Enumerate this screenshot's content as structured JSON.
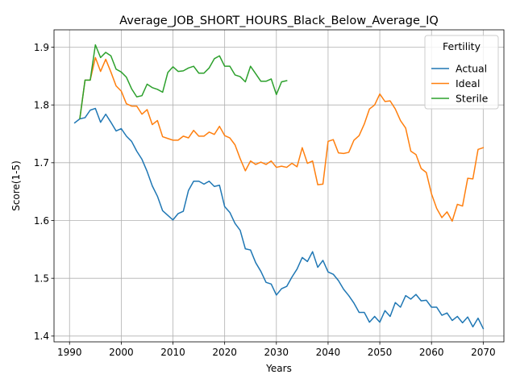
{
  "chart_data": {
    "type": "line",
    "title": "Average_JOB_SHORT_HOURS_Black_Below_Average_IQ",
    "xlabel": "Years",
    "ylabel": "Score(1-5)",
    "xlim": [
      1987,
      2074
    ],
    "ylim": [
      1.39,
      1.93
    ],
    "xticks": [
      1990,
      2000,
      2010,
      2020,
      2030,
      2040,
      2050,
      2060,
      2070
    ],
    "yticks": [
      1.4,
      1.5,
      1.6,
      1.7,
      1.8,
      1.9
    ],
    "grid": true,
    "legend": {
      "title": "Fertility",
      "placement": "top-right"
    },
    "series": [
      {
        "name": "Actual",
        "color": "#1f77b4",
        "x": [
          1991,
          1992,
          1993,
          1994,
          1995,
          1996,
          1997,
          1998,
          1999,
          2000,
          2001,
          2002,
          2003,
          2004,
          2005,
          2006,
          2007,
          2008,
          2009,
          2010,
          2011,
          2012,
          2013,
          2014,
          2015,
          2016,
          2017,
          2018,
          2019,
          2020,
          2021,
          2022,
          2023,
          2024,
          2025,
          2026,
          2027,
          2028,
          2029,
          2030,
          2031,
          2032,
          2033,
          2034,
          2035,
          2036,
          2037,
          2038,
          2039,
          2040,
          2041,
          2042,
          2043,
          2044,
          2045,
          2046,
          2047,
          2048,
          2049,
          2050,
          2051,
          2052,
          2053,
          2054,
          2055,
          2056,
          2057,
          2058,
          2059,
          2060,
          2061,
          2062,
          2063,
          2064,
          2065,
          2066,
          2067,
          2068,
          2069,
          2070
        ],
        "values": [
          1.769,
          1.776,
          1.778,
          1.791,
          1.794,
          1.77,
          1.784,
          1.77,
          1.755,
          1.759,
          1.746,
          1.737,
          1.72,
          1.706,
          1.685,
          1.66,
          1.642,
          1.617,
          1.609,
          1.601,
          1.612,
          1.616,
          1.652,
          1.668,
          1.668,
          1.663,
          1.668,
          1.659,
          1.661,
          1.624,
          1.614,
          1.595,
          1.583,
          1.551,
          1.549,
          1.527,
          1.512,
          1.493,
          1.49,
          1.471,
          1.482,
          1.486,
          1.502,
          1.516,
          1.536,
          1.529,
          1.546,
          1.519,
          1.531,
          1.511,
          1.507,
          1.496,
          1.481,
          1.47,
          1.457,
          1.441,
          1.441,
          1.424,
          1.434,
          1.424,
          1.444,
          1.434,
          1.458,
          1.45,
          1.47,
          1.464,
          1.472,
          1.461,
          1.462,
          1.45,
          1.45,
          1.436,
          1.44,
          1.427,
          1.434,
          1.423,
          1.433,
          1.416,
          1.431,
          1.413
        ]
      },
      {
        "name": "Ideal",
        "color": "#ff7f0e",
        "x": [
          1992,
          1993,
          1994,
          1995,
          1996,
          1997,
          1998,
          1999,
          2000,
          2001,
          2002,
          2003,
          2004,
          2005,
          2006,
          2007,
          2008,
          2009,
          2010,
          2011,
          2012,
          2013,
          2014,
          2015,
          2016,
          2017,
          2018,
          2019,
          2020,
          2021,
          2022,
          2023,
          2024,
          2025,
          2026,
          2027,
          2028,
          2029,
          2030,
          2031,
          2032,
          2033,
          2034,
          2035,
          2036,
          2037,
          2038,
          2039,
          2040,
          2041,
          2042,
          2043,
          2044,
          2045,
          2046,
          2047,
          2048,
          2049,
          2050,
          2051,
          2052,
          2053,
          2054,
          2055,
          2056,
          2057,
          2058,
          2059,
          2060,
          2061,
          2062,
          2063,
          2064,
          2065,
          2066,
          2067,
          2068,
          2069,
          2070
        ],
        "values": [
          1.777,
          1.843,
          1.843,
          1.882,
          1.858,
          1.879,
          1.857,
          1.833,
          1.824,
          1.802,
          1.798,
          1.798,
          1.784,
          1.792,
          1.766,
          1.773,
          1.745,
          1.742,
          1.739,
          1.739,
          1.746,
          1.743,
          1.756,
          1.746,
          1.746,
          1.753,
          1.749,
          1.763,
          1.747,
          1.743,
          1.731,
          1.707,
          1.686,
          1.703,
          1.697,
          1.701,
          1.697,
          1.703,
          1.692,
          1.694,
          1.692,
          1.699,
          1.693,
          1.726,
          1.699,
          1.703,
          1.662,
          1.663,
          1.737,
          1.74,
          1.717,
          1.716,
          1.718,
          1.739,
          1.747,
          1.767,
          1.793,
          1.8,
          1.819,
          1.806,
          1.807,
          1.793,
          1.773,
          1.76,
          1.72,
          1.714,
          1.69,
          1.683,
          1.646,
          1.621,
          1.605,
          1.615,
          1.599,
          1.628,
          1.625,
          1.673,
          1.672,
          1.723,
          1.726
        ]
      },
      {
        "name": "Sterile",
        "color": "#2ca02c",
        "x": [
          1992,
          1993,
          1994,
          1995,
          1996,
          1997,
          1998,
          1999,
          2000,
          2001,
          2002,
          2003,
          2004,
          2005,
          2006,
          2007,
          2008,
          2009,
          2010,
          2011,
          2012,
          2013,
          2014,
          2015,
          2016,
          2017,
          2018,
          2019,
          2020,
          2021,
          2022,
          2023,
          2024,
          2025,
          2026,
          2027,
          2028,
          2029,
          2030,
          2031,
          2032
        ],
        "values": [
          1.777,
          1.843,
          1.843,
          1.904,
          1.882,
          1.891,
          1.885,
          1.862,
          1.857,
          1.848,
          1.828,
          1.814,
          1.816,
          1.836,
          1.83,
          1.827,
          1.822,
          1.856,
          1.866,
          1.858,
          1.859,
          1.864,
          1.867,
          1.855,
          1.855,
          1.864,
          1.88,
          1.885,
          1.867,
          1.867,
          1.852,
          1.849,
          1.84,
          1.867,
          1.854,
          1.841,
          1.841,
          1.845,
          1.818,
          1.84,
          1.842
        ]
      }
    ]
  }
}
